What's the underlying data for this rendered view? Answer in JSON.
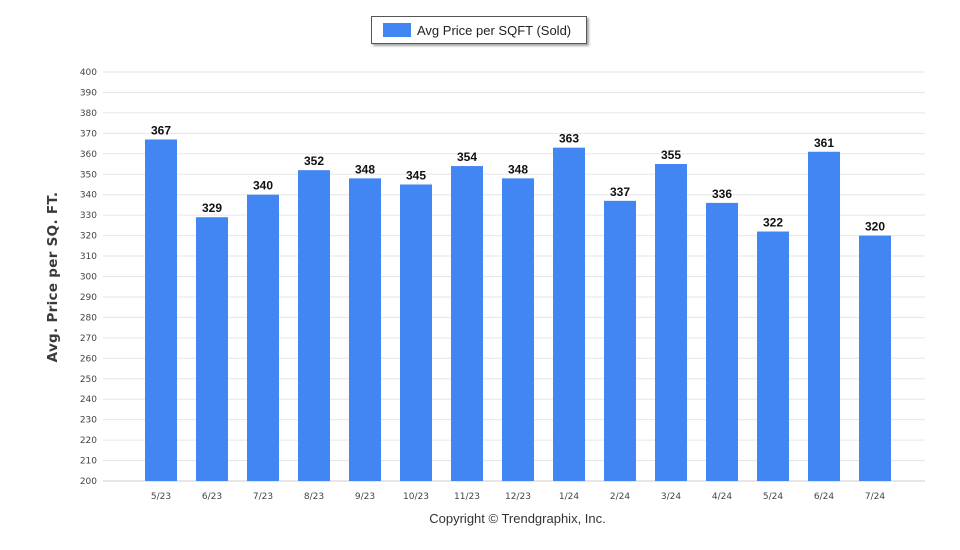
{
  "chart_data": {
    "type": "bar",
    "title": "",
    "xlabel": "",
    "ylabel": "Avg. Price per SQ. FT.",
    "ylim": [
      200,
      400
    ],
    "ytick_step": 10,
    "grid": true,
    "legend_position": "top-center",
    "categories": [
      "5/23",
      "6/23",
      "7/23",
      "8/23",
      "9/23",
      "10/23",
      "11/23",
      "12/23",
      "1/24",
      "2/24",
      "3/24",
      "4/24",
      "5/24",
      "6/24",
      "7/24"
    ],
    "series": [
      {
        "name": "Avg Price per SQFT (Sold)",
        "color": "#4286f4",
        "values": [
          367,
          329,
          340,
          352,
          348,
          345,
          354,
          348,
          363,
          337,
          355,
          336,
          322,
          361,
          320
        ]
      }
    ]
  },
  "footer": {
    "copyright": "Copyright © Trendgraphix, Inc."
  },
  "colors": {
    "bar": "#4286f4",
    "grid": "#e6e6e6",
    "axis": "#cccccc"
  }
}
